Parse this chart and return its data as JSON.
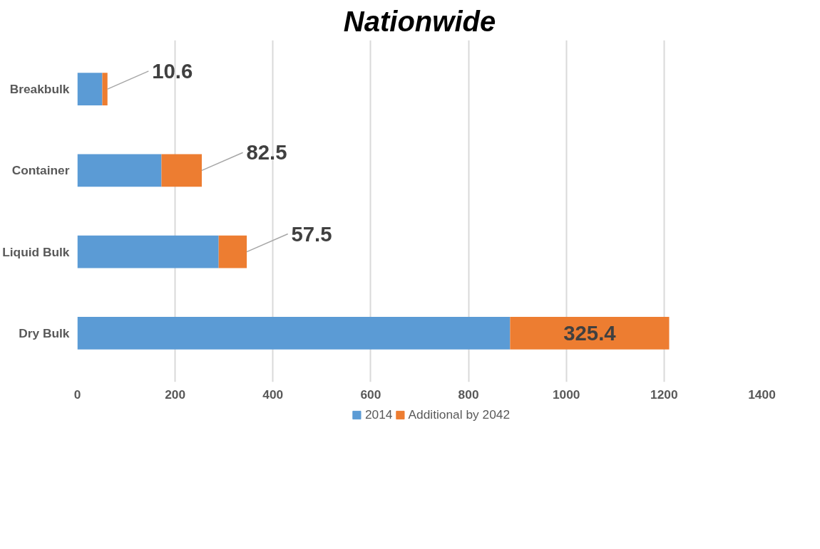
{
  "chart_data": {
    "type": "bar",
    "title": "Nationwide",
    "orientation": "horizontal",
    "stacked": true,
    "categories": [
      "Breakbulk",
      "Container",
      "Liquid Bulk",
      "Dry Bulk"
    ],
    "series": [
      {
        "name": "2014",
        "color": "#5b9bd5",
        "values": [
          51,
          172,
          289,
          885
        ]
      },
      {
        "name": "Additional by 2042",
        "color": "#ed7d31",
        "values": [
          10.6,
          82.5,
          57.5,
          325.4
        ],
        "value_labels": [
          "10.6",
          "82.5",
          "57.5",
          "325.4"
        ]
      }
    ],
    "xlim": [
      0,
      1400
    ],
    "xticks": [
      0,
      200,
      400,
      600,
      800,
      1000,
      1200,
      1400
    ],
    "grid": "x",
    "legend": "bottom"
  }
}
